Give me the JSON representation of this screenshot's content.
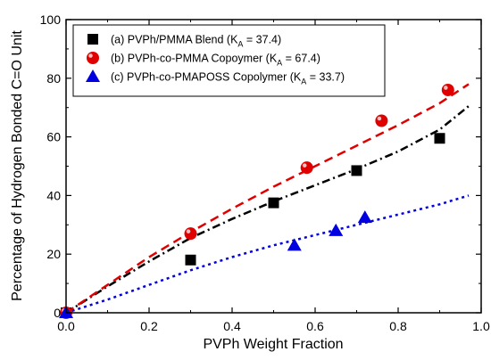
{
  "chart_data": {
    "type": "scatter",
    "xlabel": "PVPh Weight Fraction",
    "ylabel": "Percentage of Hydrogen Bonded C=O Unit",
    "xlim": [
      0.0,
      1.0
    ],
    "ylim": [
      0,
      100
    ],
    "xticks": [
      "0.0",
      "0.2",
      "0.4",
      "0.6",
      "0.8",
      "1.0"
    ],
    "yticks": [
      "0",
      "20",
      "40",
      "60",
      "80",
      "100"
    ],
    "grid": false,
    "legend_position": "top-left",
    "series": [
      {
        "name": "(a) PVPh/PMMA Blend",
        "ka_label": "(K",
        "ka_sub": "A",
        "ka_value": " = 37.4)",
        "marker": "square",
        "color": "#000000",
        "x": [
          0.0,
          0.3,
          0.5,
          0.7,
          0.9
        ],
        "y": [
          0,
          18,
          37.5,
          48.5,
          59.5
        ],
        "fit_style": "dashdot",
        "fit_color": "#000000",
        "fit_x": [
          0.0,
          0.1,
          0.2,
          0.3,
          0.4,
          0.5,
          0.6,
          0.7,
          0.8,
          0.9,
          0.97
        ],
        "fit_y": [
          0,
          9.0,
          17.5,
          25.5,
          32.0,
          38.0,
          43.5,
          49.0,
          55.0,
          62.5,
          70.5
        ]
      },
      {
        "name": "(b) PVPh-co-PMMA Copoymer",
        "ka_label": "(K",
        "ka_sub": "A",
        "ka_value": " = 67.4)",
        "marker": "circle",
        "color": "#e00000",
        "x": [
          0.0,
          0.3,
          0.58,
          0.76,
          0.92
        ],
        "y": [
          0,
          27,
          49.5,
          65.5,
          76
        ],
        "fit_style": "dash",
        "fit_color": "#e00000",
        "fit_x": [
          0.0,
          0.1,
          0.2,
          0.3,
          0.4,
          0.5,
          0.6,
          0.7,
          0.8,
          0.9,
          0.97
        ],
        "fit_y": [
          0,
          9.5,
          19.0,
          27.5,
          35.5,
          43.0,
          50.0,
          57.0,
          64.0,
          71.5,
          78.0
        ]
      },
      {
        "name": "(c) PVPh-co-PMAPOSS Copolymer",
        "ka_label": "(K",
        "ka_sub": "A",
        "ka_value": " = 33.7)",
        "marker": "triangle",
        "color": "#0000e0",
        "x": [
          0.0,
          0.55,
          0.65,
          0.72
        ],
        "y": [
          0,
          23,
          28,
          32.5
        ],
        "fit_style": "dot",
        "fit_color": "#0000e0",
        "fit_x": [
          0.0,
          0.1,
          0.2,
          0.3,
          0.4,
          0.5,
          0.6,
          0.7,
          0.8,
          0.9,
          0.97
        ],
        "fit_y": [
          0,
          4.5,
          9.5,
          14.5,
          19.0,
          23.0,
          26.5,
          30.0,
          33.5,
          37.0,
          40.0
        ]
      }
    ]
  }
}
